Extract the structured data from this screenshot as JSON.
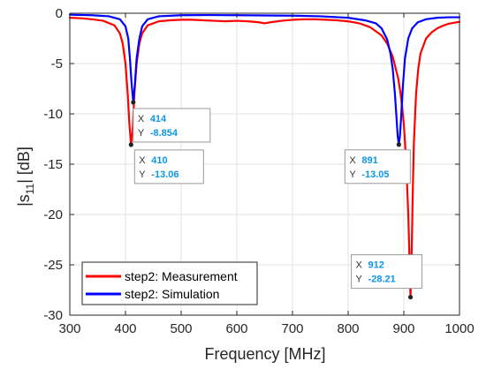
{
  "chart_data": {
    "type": "line",
    "xlabel": "Frequency [MHz]",
    "ylabel_main": "|s",
    "ylabel_sub": "11",
    "ylabel_tail": "| [dB]",
    "xlim": [
      300,
      1000
    ],
    "ylim": [
      -30,
      0
    ],
    "xticks": [
      300,
      400,
      500,
      600,
      700,
      800,
      900,
      1000
    ],
    "yticks": [
      0,
      -5,
      -10,
      -15,
      -20,
      -25,
      -30
    ],
    "grid": true,
    "legend_position": "bottom-left",
    "series": [
      {
        "name": "step2: Measurement",
        "color": "#ff0000",
        "x": [
          300,
          320,
          340,
          360,
          380,
          390,
          395,
          400,
          404,
          407,
          410,
          413,
          416,
          420,
          425,
          430,
          440,
          460,
          480,
          500,
          520,
          540,
          560,
          580,
          600,
          620,
          640,
          650,
          660,
          680,
          700,
          720,
          740,
          760,
          780,
          800,
          820,
          840,
          860,
          870,
          880,
          890,
          895,
          900,
          904,
          908,
          910,
          912,
          914,
          916,
          918,
          922,
          926,
          930,
          940,
          950,
          960,
          970,
          980,
          990,
          1000
        ],
        "y": [
          -0.45,
          -0.5,
          -0.6,
          -0.75,
          -1.2,
          -2.0,
          -3.0,
          -5.0,
          -8.0,
          -11.0,
          -13.06,
          -11.5,
          -8.0,
          -5.0,
          -3.0,
          -2.0,
          -1.2,
          -0.8,
          -0.7,
          -0.65,
          -0.65,
          -0.7,
          -0.75,
          -0.8,
          -0.75,
          -0.8,
          -0.9,
          -1.0,
          -0.9,
          -0.75,
          -0.65,
          -0.6,
          -0.6,
          -0.65,
          -0.7,
          -0.8,
          -1.0,
          -1.4,
          -2.2,
          -3.0,
          -4.3,
          -6.5,
          -8.3,
          -11.0,
          -14.5,
          -20.0,
          -24.0,
          -28.21,
          -24.0,
          -18.0,
          -13.0,
          -8.0,
          -5.5,
          -4.0,
          -2.5,
          -1.9,
          -1.5,
          -1.25,
          -1.05,
          -0.95,
          -0.85
        ]
      },
      {
        "name": "step2: Simulation",
        "color": "#0000ff",
        "x": [
          300,
          340,
          370,
          390,
          400,
          405,
          408,
          411,
          414,
          417,
          420,
          425,
          430,
          440,
          460,
          500,
          550,
          600,
          650,
          700,
          750,
          800,
          830,
          850,
          860,
          870,
          876,
          880,
          884,
          887,
          889,
          891,
          893,
          895,
          898,
          902,
          908,
          915,
          925,
          940,
          960,
          980,
          1000
        ],
        "y": [
          -0.15,
          -0.2,
          -0.3,
          -0.6,
          -1.3,
          -2.5,
          -4.5,
          -7.0,
          -8.854,
          -7.0,
          -4.5,
          -2.5,
          -1.3,
          -0.6,
          -0.3,
          -0.2,
          -0.18,
          -0.2,
          -0.22,
          -0.24,
          -0.3,
          -0.45,
          -0.7,
          -1.0,
          -1.5,
          -2.6,
          -4.0,
          -5.5,
          -8.0,
          -10.5,
          -12.2,
          -13.05,
          -12.2,
          -10.5,
          -7.5,
          -4.5,
          -2.5,
          -1.5,
          -0.9,
          -0.6,
          -0.45,
          -0.4,
          -0.4
        ]
      }
    ],
    "datatips": [
      {
        "series": "step2: Simulation",
        "x_label": "X",
        "x_value": "414",
        "y_label": "Y",
        "y_value": "-8.854",
        "x": 414,
        "y": -8.854
      },
      {
        "series": "step2: Measurement",
        "x_label": "X",
        "x_value": "410",
        "y_label": "Y",
        "y_value": "-13.06",
        "x": 410,
        "y": -13.06
      },
      {
        "series": "step2: Simulation",
        "x_label": "X",
        "x_value": "891",
        "y_label": "Y",
        "y_value": "-13.05",
        "x": 891,
        "y": -13.05
      },
      {
        "series": "step2: Measurement",
        "x_label": "X",
        "x_value": "912",
        "y_label": "Y",
        "y_value": "-28.21",
        "x": 912,
        "y": -28.21
      }
    ],
    "colors": {
      "grid": "#e3e3e3",
      "axis": "#262626",
      "tip_value": "#0e96e6",
      "tip_border": "#9a9a9a",
      "tip_bg": "#ffffff"
    }
  }
}
